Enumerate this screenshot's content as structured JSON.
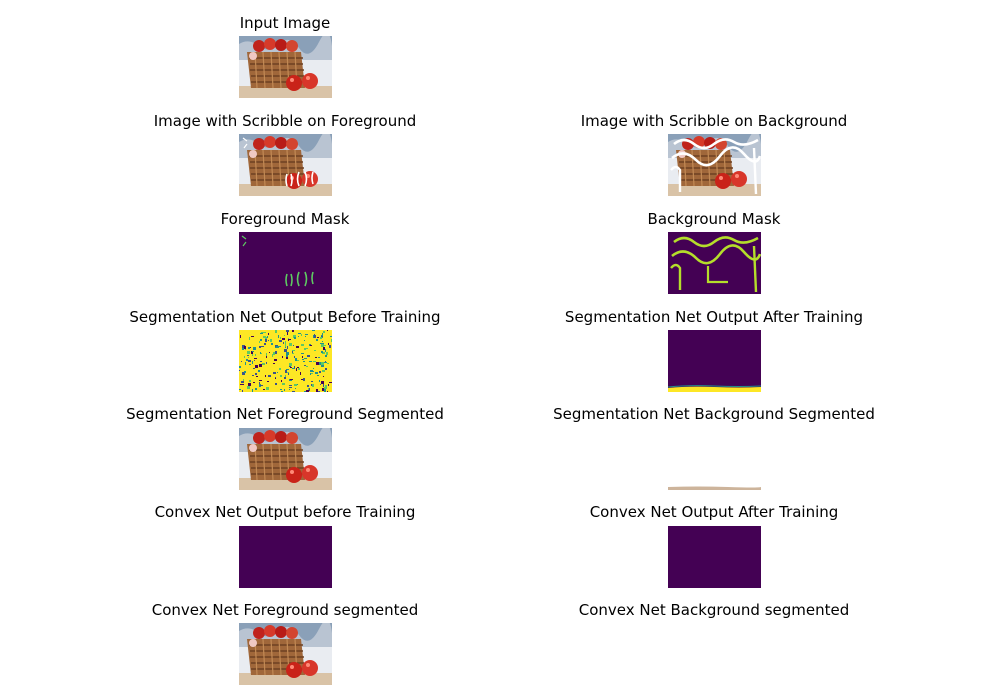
{
  "figure": {
    "panels": [
      {
        "id": "input",
        "title": "Input Image",
        "image": "photo"
      },
      {
        "id": "scribble_fg",
        "title": "Image with Scribble on Foreground",
        "image": "photo-scribble-fg"
      },
      {
        "id": "scribble_bg",
        "title": "Image with Scribble on Background",
        "image": "photo-scribble-bg"
      },
      {
        "id": "fg_mask",
        "title": "Foreground Mask",
        "image": "mask-fg"
      },
      {
        "id": "bg_mask",
        "title": "Background Mask",
        "image": "mask-bg"
      },
      {
        "id": "seg_before",
        "title": "Segmentation Net Output Before Training",
        "image": "noise-map"
      },
      {
        "id": "seg_after",
        "title": "Segmentation Net Output After Training",
        "image": "seg-after-map"
      },
      {
        "id": "seg_fg",
        "title": "Segmentation Net Foreground Segmented",
        "image": "photo"
      },
      {
        "id": "seg_bg",
        "title": "Segmentation Net Background Segmented",
        "image": "mostly-blank"
      },
      {
        "id": "cvx_before",
        "title": "Convex Net Output before Training",
        "image": "solid-map"
      },
      {
        "id": "cvx_after",
        "title": "Convex Net Output After Training",
        "image": "solid-map"
      },
      {
        "id": "cvx_fg",
        "title": "Convex Net Foreground segmented",
        "image": "photo"
      },
      {
        "id": "cvx_bg",
        "title": "Convex Net Background segmented",
        "image": "blank"
      }
    ],
    "colors": {
      "viridis_dark": "#440154",
      "viridis_yellow": "#fde725",
      "viridis_green": "#5ec962",
      "viridis_teal": "#21918c",
      "viridis_blue": "#3b528b"
    }
  }
}
